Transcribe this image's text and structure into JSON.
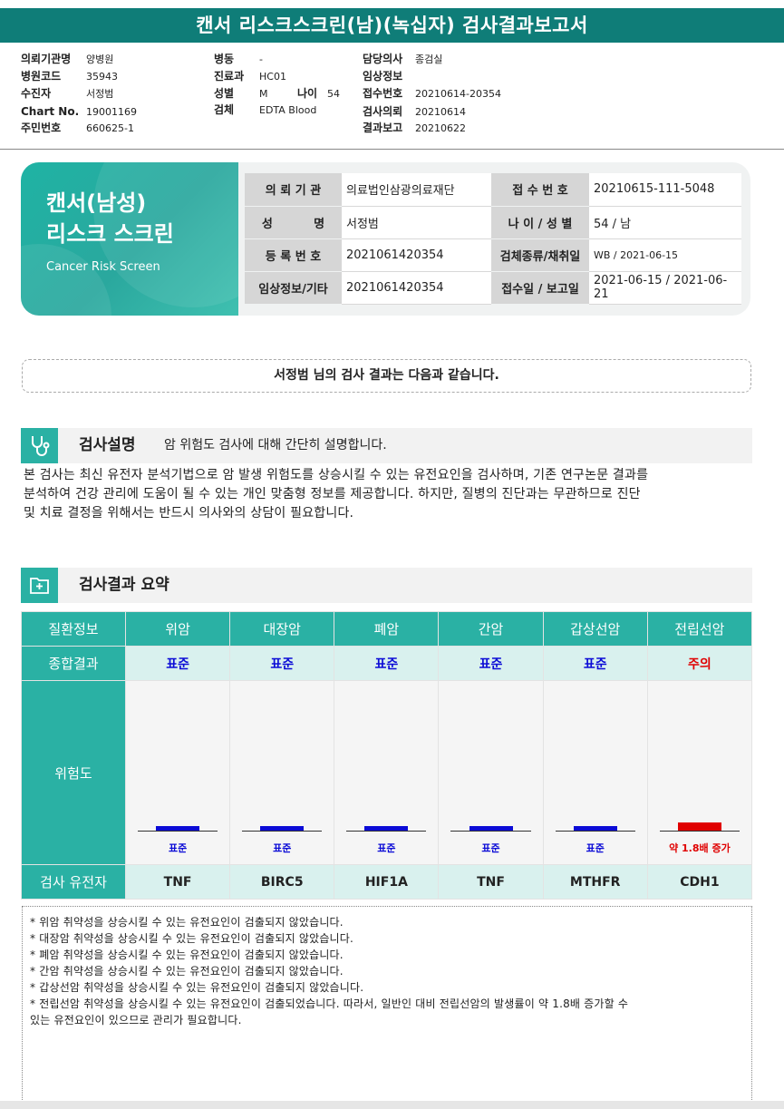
{
  "title": "캔서 리스크스크린(남)(녹십자) 검사결과보고서",
  "header": {
    "col1": [
      {
        "label": "의뢰기관명",
        "value": "양병원"
      },
      {
        "label": "병원코드",
        "value": "35943"
      },
      {
        "label": "수진자",
        "value": "서정범"
      },
      {
        "label": "Chart No.",
        "value": "19001169"
      },
      {
        "label": "주민번호",
        "value": "660625-1"
      }
    ],
    "col2": [
      {
        "label": "병동",
        "value": "-"
      },
      {
        "label": "진료과",
        "value": "HC01"
      },
      {
        "label": "성별",
        "value": "M"
      },
      {
        "label": "검체",
        "value": "EDTA Blood"
      }
    ],
    "age": {
      "label": "나이",
      "value": "54"
    },
    "col3": [
      {
        "label": "담당의사",
        "value": "종검실"
      },
      {
        "label": "임상정보",
        "value": ""
      },
      {
        "label": "접수번호",
        "value": "20210614-20354"
      },
      {
        "label": "검사의뢰",
        "value": "20210614"
      },
      {
        "label": "결과보고",
        "value": "20210622"
      }
    ]
  },
  "card": {
    "title_line1": "캔서(남성)",
    "title_line2": "리스크 스크린",
    "subtitle": "Cancer Risk Screen",
    "rows": [
      {
        "k1": "의 뢰 기 관",
        "v1": "의료법인삼광의료재단",
        "k2": "접 수 번 호",
        "v2": "20210615-111-5048"
      },
      {
        "k1": "성          명",
        "v1": "서정범",
        "k2": "나 이 / 성 별",
        "v2": "54 / 남"
      },
      {
        "k1": "등 록 번 호",
        "v1": "2021061420354",
        "k2": "검체종류/채취일",
        "v2": "WB / 2021-06-15"
      },
      {
        "k1": "임상정보/기타",
        "v1": "2021061420354",
        "k2": "접수일 / 보고일",
        "v2": "2021-06-15 / 2021-06-21"
      }
    ]
  },
  "notice": "서정범 님의 검사 결과는 다음과 같습니다.",
  "section1": {
    "title": "검사설명",
    "subtitle": "암 위험도 검사에 대해 간단히 설명합니다.",
    "icon": "stethoscope-icon"
  },
  "description": [
    "본 검사는 최신 유전자 분석기법으로 암 발생 위험도를 상승시킬 수 있는 유전요인을 검사하며, 기존 연구논문 결과를",
    "분석하여 건강 관리에 도움이 될 수 있는 개인 맞춤형 정보를 제공합니다. 하지만, 질병의 진단과는 무관하므로 진단",
    "및 치료 결정을 위해서는 반드시 의사와의 상담이 필요합니다."
  ],
  "section2": {
    "title": "검사결과 요약",
    "icon": "medical-folder-icon"
  },
  "results": {
    "row_labels": {
      "disease": "질환정보",
      "summary": "종합결과",
      "risk": "위험도",
      "gene": "검사 유전자"
    },
    "colors": {
      "normal": "#0b0bd6",
      "caution": "#e00000",
      "accent": "#2ab1a4"
    },
    "items": [
      {
        "disease": "위암",
        "summary": "표준",
        "gene": "TNF",
        "level_label": "표준",
        "relative_risk": 1.0,
        "status": "normal"
      },
      {
        "disease": "대장암",
        "summary": "표준",
        "gene": "BIRC5",
        "level_label": "표준",
        "relative_risk": 1.0,
        "status": "normal"
      },
      {
        "disease": "폐암",
        "summary": "표준",
        "gene": "HIF1A",
        "level_label": "표준",
        "relative_risk": 1.0,
        "status": "normal"
      },
      {
        "disease": "간암",
        "summary": "표준",
        "gene": "TNF",
        "level_label": "표준",
        "relative_risk": 1.0,
        "status": "normal"
      },
      {
        "disease": "갑상선암",
        "summary": "표준",
        "gene": "MTHFR",
        "level_label": "표준",
        "relative_risk": 1.0,
        "status": "normal"
      },
      {
        "disease": "전립선암",
        "summary": "주의",
        "gene": "CDH1",
        "level_label": "약 1.8배 증가",
        "relative_risk": 1.8,
        "status": "caution"
      }
    ]
  },
  "notes": [
    "* 위암 취약성을 상승시킬 수 있는 유전요인이 검출되지 않았습니다.",
    "* 대장암 취약성을 상승시킬 수 있는 유전요인이 검출되지 않았습니다.",
    "* 폐암 취약성을 상승시킬 수 있는 유전요인이 검출되지 않았습니다.",
    "* 간암 취약성을 상승시킬 수 있는 유전요인이 검출되지 않았습니다.",
    "* 갑상선암 취약성을 상승시킬 수 있는 유전요인이 검출되지 않았습니다.",
    "* 전립선암 취약성을 상승시킬 수 있는 유전요인이 검출되었습니다. 따라서, 일반인 대비 전립선암의 발생률이 약 1.8배 증가할 수",
    "있는 유전요인이 있으므로 관리가 필요합니다."
  ]
}
